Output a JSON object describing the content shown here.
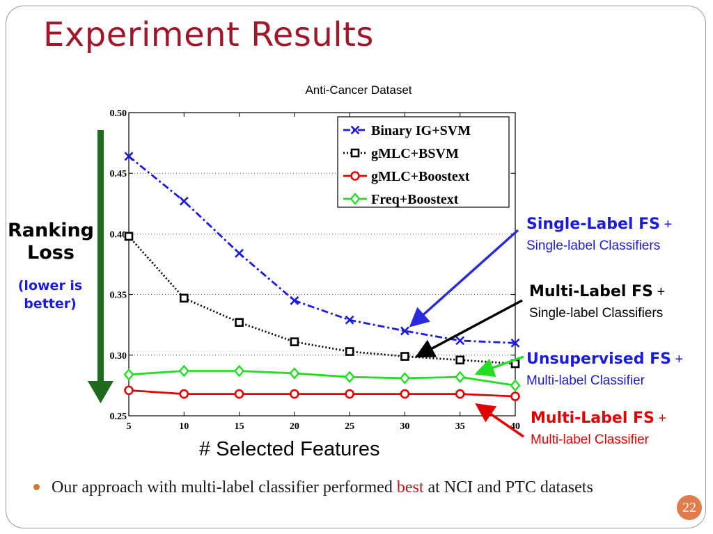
{
  "slide": {
    "title": "Experiment Results",
    "ylabel_line1": "Ranking",
    "ylabel_line2": "Loss",
    "ylabel_note_line1": "(lower is",
    "ylabel_note_line2": "better)",
    "bullet": {
      "text_before": "Our approach with multi-label classifier performed ",
      "highlight": "best",
      "text_after": " at NCI and PTC datasets"
    },
    "page_number": "22"
  },
  "annotations": [
    {
      "strong": "Single-Label FS",
      "plus": " +",
      "line2": "Single-label Classifiers",
      "color": "#1a1ae0",
      "line2_color": "#1a1ae0"
    },
    {
      "strong": "Multi-Label FS",
      "plus": " +",
      "line2": "Single-label Classifiers",
      "color": "#000000",
      "line2_color": "#000000"
    },
    {
      "strong": "Unsupervised FS",
      "plus": " +",
      "line2": "Multi-label Classifier",
      "color": "#1a1ae0",
      "line2_color": "#1a1ae0"
    },
    {
      "strong": "Multi-Label FS",
      "plus": " +",
      "line2": "Multi-label Classifier",
      "color": "#e00000",
      "line2_color": "#e00000"
    }
  ],
  "colors": {
    "title": "#a0172a",
    "arrow_green": "#1e6b1e",
    "arrow_blue": "#2a2ae0",
    "arrow_black": "#000000",
    "arrow_lime": "#22dd22",
    "arrow_red": "#e00000",
    "bullet": "#d07a33",
    "page_badge": "#e07b4b"
  },
  "chart_data": {
    "type": "line",
    "title": "Anti-Cancer Dataset",
    "xlabel": "# Selected Features",
    "ylabel": "",
    "x": [
      5,
      10,
      15,
      20,
      25,
      30,
      35,
      40
    ],
    "xlim": [
      5,
      40
    ],
    "ylim": [
      0.25,
      0.5
    ],
    "xticks": [
      5,
      10,
      15,
      20,
      25,
      30,
      35,
      40
    ],
    "yticks": [
      "0.25",
      "0.30",
      "0.35",
      "0.40",
      "0.45",
      "0.50"
    ],
    "grid": "horizontal dotted",
    "legend": "top-right",
    "series": [
      {
        "name": "Binary IG+SVM",
        "color": "#1a1ae0",
        "dash": "10 4 3 4",
        "marker": "x",
        "values": [
          0.464,
          0.427,
          0.384,
          0.345,
          0.329,
          0.32,
          0.312,
          0.31
        ]
      },
      {
        "name": "gMLC+BSVM",
        "color": "#000000",
        "dash": "2 3",
        "marker": "square",
        "values": [
          0.398,
          0.347,
          0.327,
          0.311,
          0.303,
          0.299,
          0.296,
          0.293
        ]
      },
      {
        "name": "gMLC+Boostext",
        "color": "#e00000",
        "dash": "",
        "marker": "circle",
        "values": [
          0.271,
          0.268,
          0.268,
          0.268,
          0.268,
          0.268,
          0.268,
          0.266
        ]
      },
      {
        "name": "Freq+Boostext",
        "color": "#22dd22",
        "dash": "",
        "marker": "diamond",
        "values": [
          0.284,
          0.287,
          0.287,
          0.285,
          0.282,
          0.281,
          0.282,
          0.275
        ]
      }
    ]
  }
}
